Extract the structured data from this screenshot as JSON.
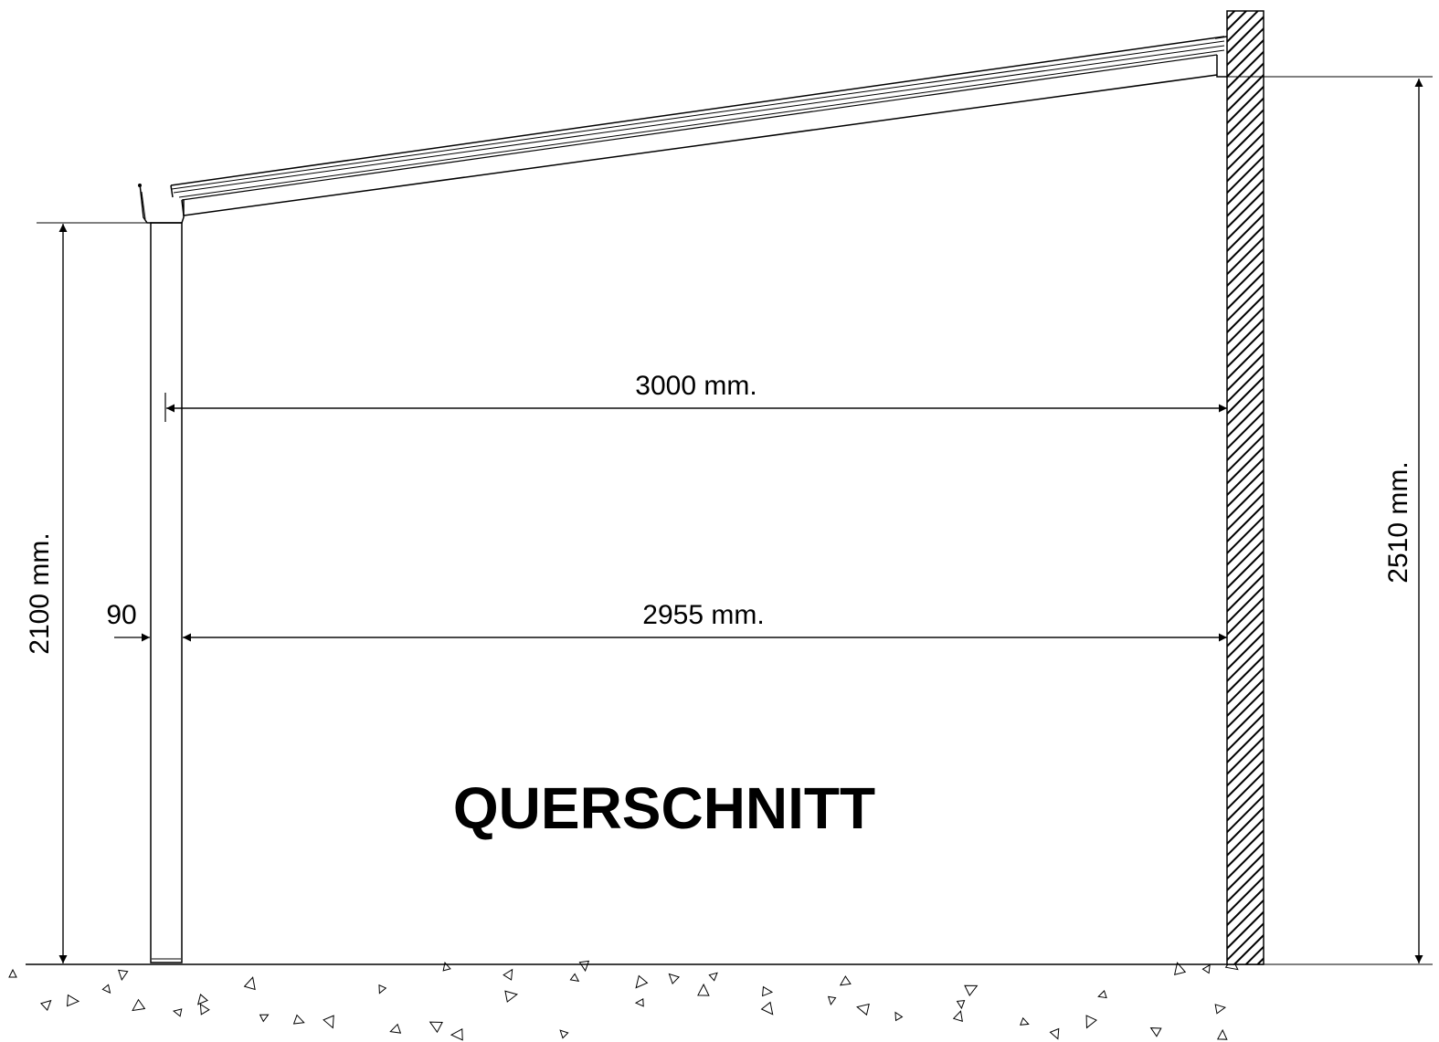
{
  "drawing": {
    "title": "QUERSCHNITT",
    "dimensions": {
      "post_height": "2100 mm.",
      "wall_height": "2510 mm.",
      "outer_span": "3000 mm.",
      "inner_span": "2955 mm.",
      "post_width": "90"
    }
  }
}
